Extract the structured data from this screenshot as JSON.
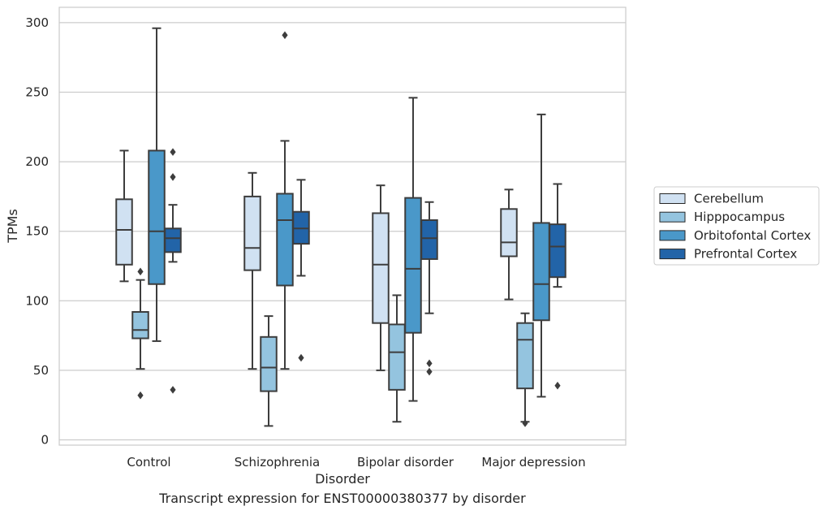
{
  "caption": "Transcript expression for ENST00000380377 by disorder",
  "chart_data": {
    "type": "box",
    "xlabel": "Disorder",
    "ylabel": "TPMs",
    "ylim": [
      -4,
      310
    ],
    "yticks": [
      0,
      50,
      100,
      150,
      200,
      250,
      300
    ],
    "grid": "horizontal",
    "legend_position": "right",
    "categories": [
      "Control",
      "Schizophrenia",
      "Bipolar disorder",
      "Major depression"
    ],
    "series": [
      {
        "name": "Cerebellum",
        "color": "#d0e1f2",
        "boxes": [
          {
            "whisker_low": 114,
            "q1": 126,
            "median": 151,
            "q3": 173,
            "whisker_high": 208,
            "outliers": []
          },
          {
            "whisker_low": 51,
            "q1": 122,
            "median": 138,
            "q3": 175,
            "whisker_high": 192,
            "outliers": []
          },
          {
            "whisker_low": 50,
            "q1": 84,
            "median": 126,
            "q3": 163,
            "whisker_high": 183,
            "outliers": []
          },
          {
            "whisker_low": 101,
            "q1": 132,
            "median": 142,
            "q3": 166,
            "whisker_high": 180,
            "outliers": []
          }
        ]
      },
      {
        "name": "Hipppocampus",
        "color": "#94c4df",
        "boxes": [
          {
            "whisker_low": 51,
            "q1": 73,
            "median": 79,
            "q3": 92,
            "whisker_high": 115,
            "outliers": [
              121,
              32
            ]
          },
          {
            "whisker_low": 10,
            "q1": 35,
            "median": 52,
            "q3": 74,
            "whisker_high": 89,
            "outliers": []
          },
          {
            "whisker_low": 13,
            "q1": 36,
            "median": 63,
            "q3": 83,
            "whisker_high": 104,
            "outliers": []
          },
          {
            "whisker_low": 13,
            "q1": 37,
            "median": 72,
            "q3": 84,
            "whisker_high": 91,
            "outliers": [
              12
            ]
          }
        ]
      },
      {
        "name": "Orbitofontal Cortex",
        "color": "#4a98c9",
        "boxes": [
          {
            "whisker_low": 71,
            "q1": 112,
            "median": 150,
            "q3": 208,
            "whisker_high": 296,
            "outliers": []
          },
          {
            "whisker_low": 51,
            "q1": 111,
            "median": 158,
            "q3": 177,
            "whisker_high": 215,
            "outliers": [
              291
            ]
          },
          {
            "whisker_low": 28,
            "q1": 77,
            "median": 123,
            "q3": 174,
            "whisker_high": 246,
            "outliers": []
          },
          {
            "whisker_low": 31,
            "q1": 86,
            "median": 112,
            "q3": 156,
            "whisker_high": 234,
            "outliers": []
          }
        ]
      },
      {
        "name": "Prefrontal Cortex",
        "color": "#2264a8",
        "boxes": [
          {
            "whisker_low": 128,
            "q1": 135,
            "median": 145,
            "q3": 152,
            "whisker_high": 169,
            "outliers": [
              207,
              189,
              36
            ]
          },
          {
            "whisker_low": 118,
            "q1": 141,
            "median": 152,
            "q3": 164,
            "whisker_high": 187,
            "outliers": [
              59
            ]
          },
          {
            "whisker_low": 91,
            "q1": 130,
            "median": 145,
            "q3": 158,
            "whisker_high": 171,
            "outliers": [
              55,
              49
            ]
          },
          {
            "whisker_low": 110,
            "q1": 117,
            "median": 139,
            "q3": 155,
            "whisker_high": 184,
            "outliers": [
              39
            ]
          }
        ]
      }
    ]
  }
}
